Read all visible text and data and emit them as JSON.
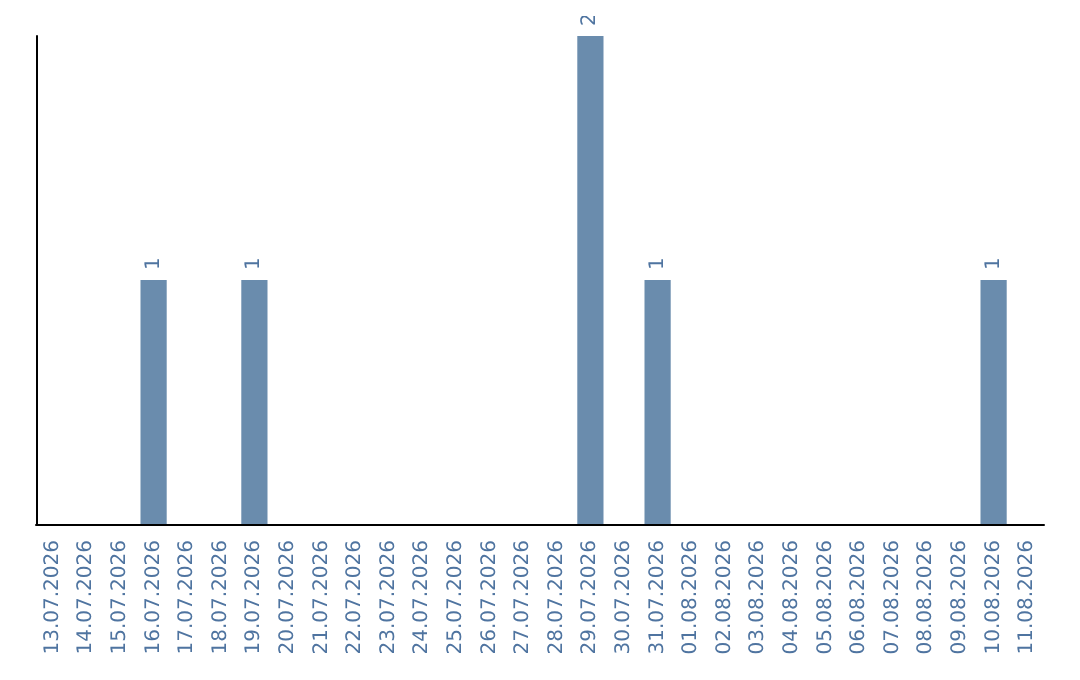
{
  "chart_data": {
    "type": "bar",
    "categories": [
      "13.07.2026",
      "14.07.2026",
      "15.07.2026",
      "16.07.2026",
      "17.07.2026",
      "18.07.2026",
      "19.07.2026",
      "20.07.2026",
      "21.07.2026",
      "22.07.2026",
      "23.07.2026",
      "24.07.2026",
      "25.07.2026",
      "26.07.2026",
      "27.07.2026",
      "28.07.2026",
      "29.07.2026",
      "30.07.2026",
      "31.07.2026",
      "01.08.2026",
      "02.08.2026",
      "03.08.2026",
      "04.08.2026",
      "05.08.2026",
      "06.08.2026",
      "07.08.2026",
      "08.08.2026",
      "09.08.2026",
      "10.08.2026",
      "11.08.2026"
    ],
    "values": [
      0,
      0,
      0,
      1,
      0,
      0,
      1,
      0,
      0,
      0,
      0,
      0,
      0,
      0,
      0,
      0,
      2,
      0,
      1,
      0,
      0,
      0,
      0,
      0,
      0,
      0,
      0,
      0,
      1,
      0
    ],
    "value_labels": [
      null,
      null,
      null,
      "1",
      null,
      null,
      "1",
      null,
      null,
      null,
      null,
      null,
      null,
      null,
      null,
      null,
      "2",
      null,
      "1",
      null,
      null,
      null,
      null,
      null,
      null,
      null,
      null,
      null,
      "1",
      null
    ],
    "color": "#6a8cad",
    "grid": false,
    "tick_labels": "x"
  }
}
